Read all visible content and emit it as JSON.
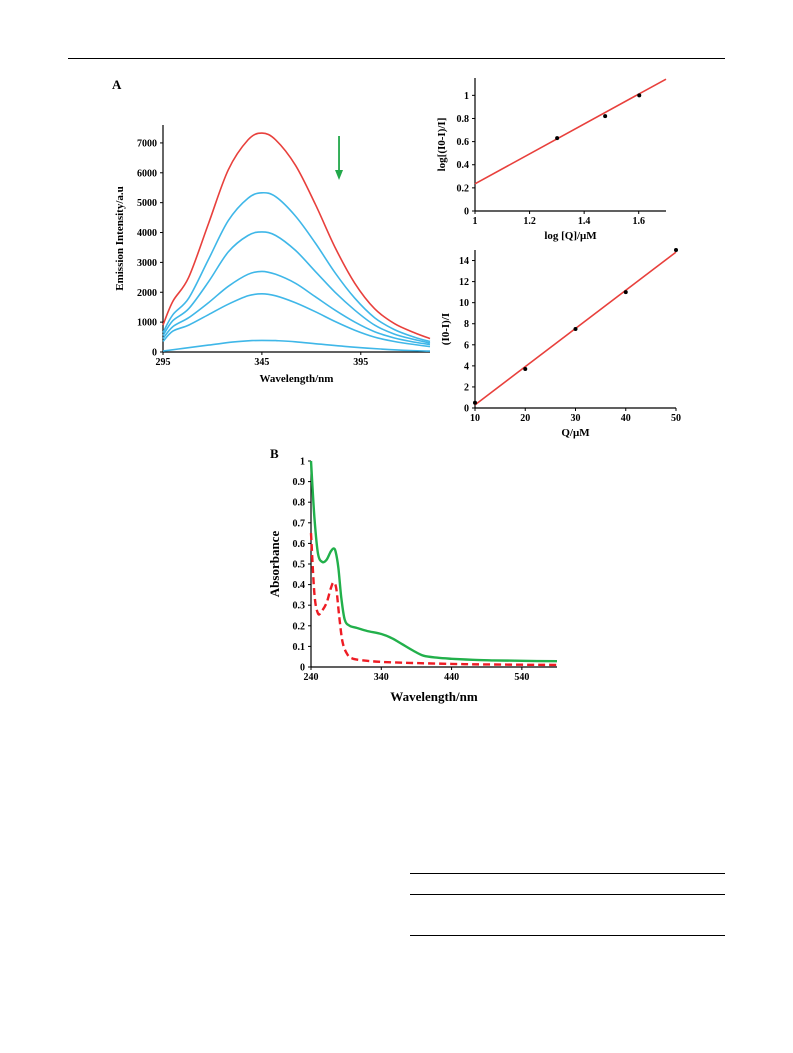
{
  "figure": {
    "panel_a_label": "A",
    "panel_b_label": "B"
  },
  "chart_data": [
    {
      "id": "emission",
      "type": "line",
      "xlabel": "Wavelength/nm",
      "ylabel": "Emission Intensity/a.u",
      "xlim": [
        295,
        430
      ],
      "ylim": [
        0,
        7600
      ],
      "xticks": [
        295,
        345,
        395
      ],
      "yticks": [
        0,
        1000,
        2000,
        3000,
        4000,
        5000,
        6000,
        7000
      ],
      "grid": false,
      "annotation": {
        "type": "arrow-down",
        "color": "#22a84a",
        "near_x": 384
      },
      "series": [
        {
          "color": "#e8403c",
          "x": [
            295,
            300,
            308,
            318,
            328,
            338,
            345,
            352,
            362,
            372,
            382,
            392,
            402,
            412,
            422,
            430
          ],
          "y": [
            900,
            1700,
            2500,
            4300,
            6100,
            7100,
            7330,
            7100,
            6250,
            4950,
            3500,
            2300,
            1450,
            950,
            650,
            450
          ]
        },
        {
          "color": "#3fb7e8",
          "x": [
            295,
            300,
            308,
            318,
            328,
            338,
            345,
            352,
            362,
            372,
            382,
            392,
            402,
            412,
            422,
            430
          ],
          "y": [
            650,
            1250,
            1800,
            3100,
            4400,
            5150,
            5330,
            5200,
            4550,
            3650,
            2650,
            1800,
            1150,
            750,
            500,
            350
          ]
        },
        {
          "color": "#3fb7e8",
          "x": [
            295,
            300,
            308,
            318,
            328,
            338,
            345,
            352,
            362,
            372,
            382,
            392,
            402,
            412,
            422,
            430
          ],
          "y": [
            550,
            1050,
            1450,
            2350,
            3350,
            3900,
            4020,
            3900,
            3400,
            2700,
            2000,
            1400,
            900,
            600,
            420,
            300
          ]
        },
        {
          "color": "#3fb7e8",
          "x": [
            295,
            300,
            308,
            318,
            328,
            338,
            345,
            352,
            362,
            372,
            382,
            392,
            402,
            412,
            422,
            430
          ],
          "y": [
            450,
            850,
            1150,
            1650,
            2200,
            2600,
            2700,
            2600,
            2300,
            1850,
            1400,
            1000,
            680,
            470,
            330,
            250
          ]
        },
        {
          "color": "#3fb7e8",
          "x": [
            295,
            300,
            308,
            318,
            328,
            338,
            345,
            352,
            362,
            372,
            382,
            392,
            402,
            412,
            422,
            430
          ],
          "y": [
            350,
            700,
            900,
            1250,
            1600,
            1880,
            1950,
            1880,
            1650,
            1350,
            1020,
            730,
            500,
            350,
            250,
            180
          ]
        },
        {
          "color": "#3fb7e8",
          "x": [
            295,
            305,
            318,
            330,
            340,
            345,
            352,
            362,
            375,
            390,
            405,
            420,
            430
          ],
          "y": [
            30,
            120,
            230,
            330,
            380,
            390,
            380,
            340,
            260,
            170,
            100,
            50,
            30
          ]
        }
      ]
    },
    {
      "id": "double_log",
      "type": "scatter",
      "xlabel": "log [Q]/μM",
      "ylabel": "log[(I0-I)/I]",
      "xlim": [
        1,
        1.7
      ],
      "ylim": [
        0,
        1.15
      ],
      "xticks": [
        1,
        1.2,
        1.4,
        1.6
      ],
      "xtick_labels": [
        "1",
        "1.2",
        "1.4",
        "1.6"
      ],
      "yticks": [
        0,
        0.2,
        0.4,
        0.6,
        0.8,
        1
      ],
      "ytick_labels": [
        "0",
        "0.2",
        "0.4",
        "0.6",
        "0.8",
        "1"
      ],
      "grid": false,
      "points": {
        "x": [
          1.301,
          1.477,
          1.602
        ],
        "y": [
          0.63,
          0.82,
          1.0
        ]
      },
      "fit_line": {
        "color": "#e8403c",
        "x": [
          1,
          1.7
        ],
        "y": [
          0.235,
          1.14
        ]
      }
    },
    {
      "id": "stern_volmer",
      "type": "scatter",
      "xlabel": "Q/μM",
      "ylabel": "(I0-I)/I",
      "xlim": [
        10,
        50
      ],
      "ylim": [
        0,
        15
      ],
      "xticks": [
        10,
        20,
        30,
        40,
        50
      ],
      "yticks": [
        0,
        2,
        4,
        6,
        8,
        10,
        12,
        14
      ],
      "grid": false,
      "points": {
        "x": [
          10,
          20,
          30,
          40,
          50
        ],
        "y": [
          0.5,
          3.7,
          7.5,
          11.0,
          15.0
        ]
      },
      "fit_line": {
        "color": "#e8403c",
        "x": [
          10,
          50
        ],
        "y": [
          0.3,
          14.8
        ]
      }
    },
    {
      "id": "absorbance",
      "type": "line",
      "xlabel": "Wavelength/nm",
      "ylabel": "Absorbance",
      "xlim": [
        240,
        590
      ],
      "ylim": [
        0,
        1
      ],
      "xticks": [
        240,
        340,
        440,
        540
      ],
      "yticks": [
        0,
        0.1,
        0.2,
        0.3,
        0.4,
        0.5,
        0.6,
        0.7,
        0.8,
        0.9,
        1
      ],
      "ytick_labels": [
        "0",
        "0.1",
        "0.2",
        "0.3",
        "0.4",
        "0.5",
        "0.6",
        "0.7",
        "0.8",
        "0.9",
        "1"
      ],
      "grid": false,
      "series": [
        {
          "color": "#22b04b",
          "dash": false,
          "x": [
            240,
            245,
            250,
            256,
            262,
            268,
            272,
            275,
            279,
            283,
            288,
            295,
            305,
            320,
            340,
            355,
            370,
            385,
            400,
            420,
            440,
            470,
            500,
            540,
            590
          ],
          "y": [
            1.0,
            0.72,
            0.55,
            0.51,
            0.52,
            0.56,
            0.575,
            0.56,
            0.48,
            0.34,
            0.23,
            0.2,
            0.19,
            0.175,
            0.16,
            0.14,
            0.11,
            0.08,
            0.055,
            0.045,
            0.04,
            0.035,
            0.032,
            0.03,
            0.028
          ]
        },
        {
          "color": "#ee1c24",
          "dash": true,
          "x": [
            240,
            245,
            250,
            255,
            262,
            268,
            272,
            276,
            280,
            285,
            292,
            300,
            320,
            340,
            380,
            440,
            500,
            590
          ],
          "y": [
            0.65,
            0.35,
            0.26,
            0.27,
            0.31,
            0.38,
            0.41,
            0.38,
            0.25,
            0.12,
            0.06,
            0.04,
            0.03,
            0.025,
            0.02,
            0.015,
            0.012,
            0.01
          ]
        }
      ]
    }
  ]
}
